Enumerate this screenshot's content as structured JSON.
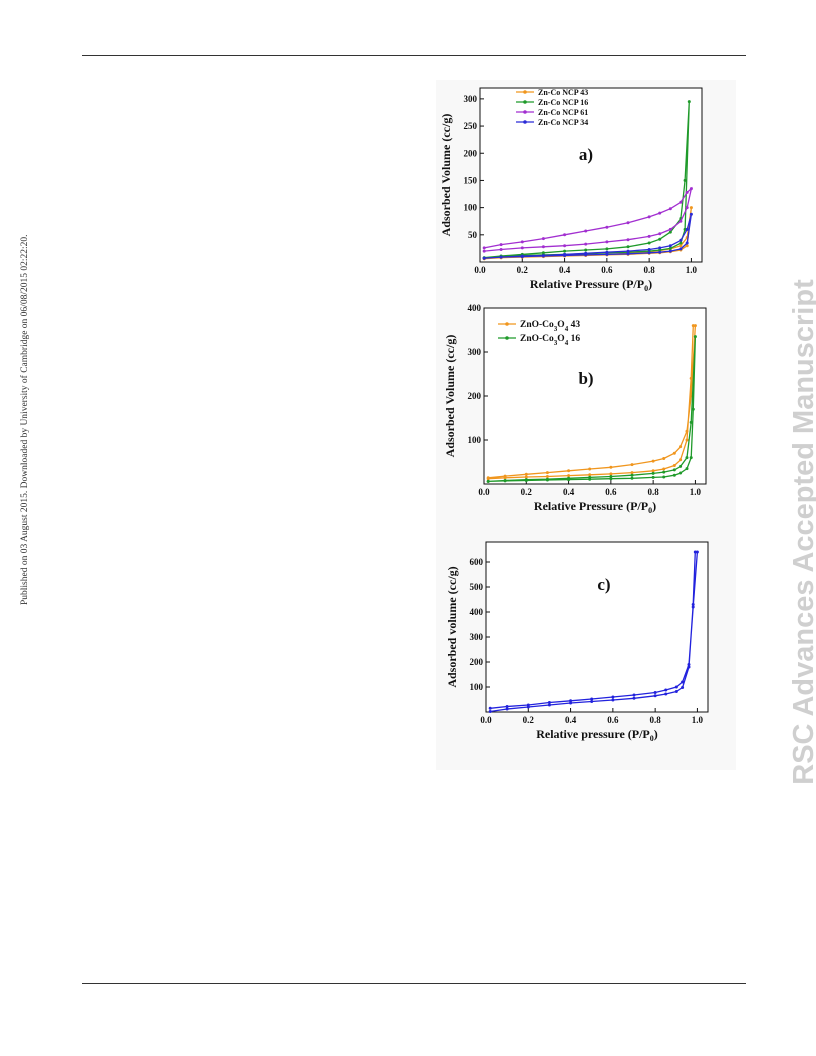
{
  "side_note": "Published on 03 August 2015. Downloaded by University of Cambridge on 06/08/2015 02:22:20.",
  "watermark": "RSC Advances Accepted Manuscript",
  "chart_data": [
    {
      "type": "line",
      "panel_label": "a)",
      "xlabel": "Relative Pressure (P/P0)",
      "ylabel": "Adsorbed Volume (cc/g)",
      "xlim": [
        0,
        1.05
      ],
      "ylim": [
        0,
        320
      ],
      "xticks": [
        "0.0",
        "0.2",
        "0.4",
        "0.6",
        "0.8",
        "1.0"
      ],
      "yticks": [
        "50",
        "100",
        "150",
        "200",
        "250",
        "300"
      ],
      "legend_position": "top-left",
      "series": [
        {
          "name": "Zn-Co NCP 43",
          "color": "#f0961e",
          "x": [
            0.02,
            0.1,
            0.2,
            0.3,
            0.4,
            0.5,
            0.6,
            0.7,
            0.8,
            0.85,
            0.9,
            0.95,
            0.98,
            1.0,
            0.98,
            0.95,
            0.9,
            0.85,
            0.8,
            0.7,
            0.6,
            0.5,
            0.4,
            0.3,
            0.2,
            0.1,
            0.02
          ],
          "y": [
            6,
            8,
            9,
            10,
            11,
            12,
            13,
            14,
            16,
            17,
            19,
            22,
            30,
            100,
            45,
            30,
            24,
            21,
            19,
            16,
            14,
            13,
            12,
            11,
            10,
            8,
            6
          ]
        },
        {
          "name": "Zn-Co NCP 16",
          "color": "#1f9a2a",
          "x": [
            0.02,
            0.1,
            0.2,
            0.3,
            0.4,
            0.5,
            0.6,
            0.7,
            0.8,
            0.85,
            0.9,
            0.95,
            0.97,
            0.99,
            0.97,
            0.95,
            0.9,
            0.85,
            0.8,
            0.7,
            0.6,
            0.5,
            0.4,
            0.3,
            0.2,
            0.1,
            0.02
          ],
          "y": [
            8,
            10,
            12,
            13,
            14,
            15,
            17,
            18,
            20,
            22,
            25,
            35,
            60,
            295,
            150,
            80,
            55,
            42,
            35,
            28,
            24,
            22,
            20,
            17,
            14,
            11,
            8
          ]
        },
        {
          "name": "Zn-Co NCP 61",
          "color": "#a22fd0",
          "x": [
            0.02,
            0.1,
            0.2,
            0.3,
            0.4,
            0.5,
            0.6,
            0.7,
            0.8,
            0.85,
            0.9,
            0.95,
            0.98,
            1.0,
            0.98,
            0.95,
            0.9,
            0.85,
            0.8,
            0.7,
            0.6,
            0.5,
            0.4,
            0.3,
            0.2,
            0.1,
            0.02
          ],
          "y": [
            20,
            23,
            26,
            28,
            30,
            33,
            37,
            41,
            47,
            52,
            60,
            75,
            100,
            135,
            128,
            110,
            98,
            90,
            83,
            72,
            64,
            57,
            50,
            43,
            37,
            32,
            26
          ]
        },
        {
          "name": "Zn-Co NCP 34",
          "color": "#2b2bd6",
          "x": [
            0.02,
            0.1,
            0.2,
            0.3,
            0.4,
            0.5,
            0.6,
            0.7,
            0.8,
            0.85,
            0.9,
            0.95,
            0.98,
            1.0,
            0.98,
            0.95,
            0.9,
            0.85,
            0.8,
            0.7,
            0.6,
            0.5,
            0.4,
            0.3,
            0.2,
            0.1,
            0.02
          ],
          "y": [
            7,
            9,
            10,
            11,
            12,
            13,
            14,
            15,
            17,
            18,
            20,
            24,
            35,
            88,
            60,
            40,
            30,
            26,
            23,
            20,
            18,
            16,
            14,
            12,
            11,
            9,
            7
          ]
        }
      ]
    },
    {
      "type": "line",
      "panel_label": "b)",
      "xlabel": "Relative Pressure (P/P0)",
      "ylabel": "Adsorbed Volume (cc/g)",
      "xlim": [
        0,
        1.05
      ],
      "ylim": [
        0,
        400
      ],
      "xticks": [
        "0.0",
        "0.2",
        "0.4",
        "0.6",
        "0.8",
        "1.0"
      ],
      "yticks": [
        "100",
        "200",
        "300",
        "400"
      ],
      "legend_position": "top-left",
      "series": [
        {
          "name": "ZnO-Co3O4 43",
          "color": "#f0961e",
          "x": [
            0.02,
            0.1,
            0.2,
            0.3,
            0.4,
            0.5,
            0.6,
            0.7,
            0.8,
            0.85,
            0.9,
            0.93,
            0.96,
            0.98,
            0.99,
            1.0,
            0.98,
            0.96,
            0.93,
            0.9,
            0.85,
            0.8,
            0.7,
            0.6,
            0.5,
            0.4,
            0.3,
            0.2,
            0.1,
            0.02
          ],
          "y": [
            12,
            14,
            16,
            17,
            19,
            21,
            23,
            26,
            30,
            34,
            42,
            55,
            100,
            240,
            360,
            360,
            200,
            120,
            85,
            70,
            58,
            52,
            44,
            38,
            34,
            30,
            26,
            22,
            18,
            14
          ]
        },
        {
          "name": "ZnO-Co3O4 16",
          "color": "#1f9a2a",
          "x": [
            0.02,
            0.1,
            0.2,
            0.3,
            0.4,
            0.5,
            0.6,
            0.7,
            0.8,
            0.85,
            0.9,
            0.93,
            0.96,
            0.98,
            0.99,
            1.0,
            0.98,
            0.96,
            0.93,
            0.9,
            0.85,
            0.8,
            0.7,
            0.6,
            0.5,
            0.4,
            0.3,
            0.2,
            0.1,
            0.02
          ],
          "y": [
            6,
            7,
            8,
            9,
            10,
            11,
            12,
            13,
            15,
            16,
            20,
            25,
            35,
            60,
            170,
            335,
            140,
            60,
            40,
            32,
            27,
            24,
            20,
            17,
            15,
            13,
            11,
            10,
            8,
            6
          ]
        }
      ]
    },
    {
      "type": "line",
      "panel_label": "c)",
      "xlabel": "Relative pressure (P/P0)",
      "ylabel": "Adsorbed volume (cc/g)",
      "xlim": [
        0,
        1.05
      ],
      "ylim": [
        0,
        680
      ],
      "xticks": [
        "0.0",
        "0.2",
        "0.4",
        "0.6",
        "0.8",
        "1.0"
      ],
      "yticks": [
        "100",
        "200",
        "300",
        "400",
        "500",
        "600"
      ],
      "legend_position": "none",
      "series": [
        {
          "name": "",
          "color": "#2222dd",
          "x": [
            0.02,
            0.1,
            0.2,
            0.3,
            0.4,
            0.5,
            0.6,
            0.7,
            0.8,
            0.85,
            0.9,
            0.93,
            0.96,
            0.98,
            0.99,
            1.0,
            0.98,
            0.96,
            0.93,
            0.9,
            0.85,
            0.8,
            0.7,
            0.6,
            0.5,
            0.4,
            0.3,
            0.2,
            0.1,
            0.02
          ],
          "y": [
            2,
            12,
            20,
            28,
            36,
            42,
            48,
            55,
            65,
            72,
            82,
            98,
            180,
            430,
            640,
            640,
            420,
            190,
            120,
            100,
            88,
            78,
            68,
            60,
            52,
            45,
            38,
            28,
            22,
            15
          ]
        }
      ]
    }
  ]
}
